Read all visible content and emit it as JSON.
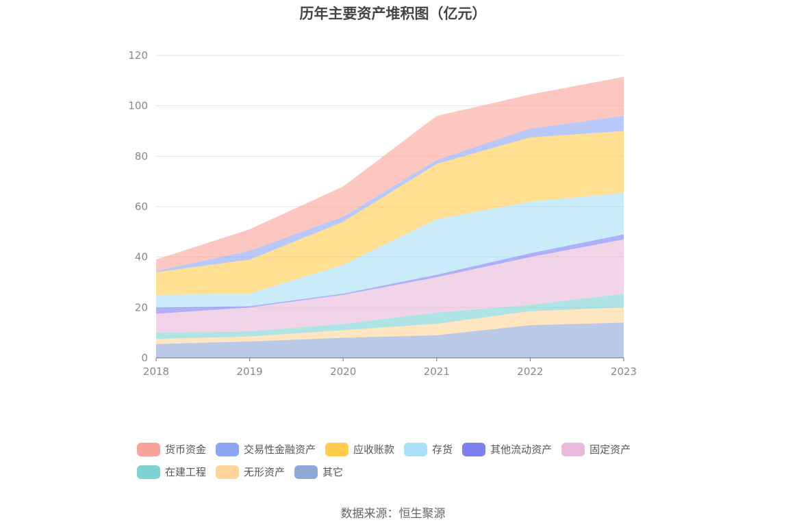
{
  "chart_data": {
    "type": "area",
    "stacked": true,
    "title": "历年主要资产堆积图（亿元）",
    "xlabel": "",
    "ylabel": "",
    "ylim": [
      0,
      120
    ],
    "yticks": [
      0,
      20,
      40,
      60,
      80,
      100,
      120
    ],
    "grid": true,
    "legend_position": "bottom",
    "categories": [
      "2018",
      "2019",
      "2020",
      "2021",
      "2022",
      "2023"
    ],
    "series": [
      {
        "name": "其它",
        "color": "#8fa9d6",
        "values": [
          5.5,
          6.5,
          8,
          9,
          13,
          14
        ]
      },
      {
        "name": "无形资产",
        "color": "#ffd59a",
        "values": [
          2,
          2,
          3,
          4.5,
          5.5,
          6
        ]
      },
      {
        "name": "在建工程",
        "color": "#7fd3d3",
        "values": [
          2.5,
          2,
          2.5,
          4.5,
          2.5,
          5.5
        ]
      },
      {
        "name": "固定资产",
        "color": "#e8b9da",
        "values": [
          7.5,
          9.5,
          11.5,
          14,
          19,
          21.5
        ]
      },
      {
        "name": "其他流动资产",
        "color": "#7b7ff0",
        "values": [
          2.5,
          0.5,
          0.5,
          1,
          1.5,
          2
        ]
      },
      {
        "name": "存货",
        "color": "#a9dff7",
        "values": [
          5,
          5,
          11.5,
          22,
          20.5,
          16.5
        ]
      },
      {
        "name": "应收账款",
        "color": "#ffcc4d",
        "values": [
          9,
          13.5,
          17,
          22,
          25.5,
          24.5
        ]
      },
      {
        "name": "交易性金融资产",
        "color": "#8aa6f5",
        "values": [
          0.5,
          3.5,
          2,
          1.5,
          3.5,
          6
        ]
      },
      {
        "name": "货币资金",
        "color": "#f9a49a",
        "values": [
          4.5,
          8.5,
          12,
          17.5,
          13.5,
          15.5
        ]
      }
    ],
    "legend_order": [
      "货币资金",
      "交易性金融资产",
      "应收账款",
      "存货",
      "其他流动资产",
      "固定资产",
      "在建工程",
      "无形资产",
      "其它"
    ],
    "source": "数据来源：恒生聚源"
  }
}
